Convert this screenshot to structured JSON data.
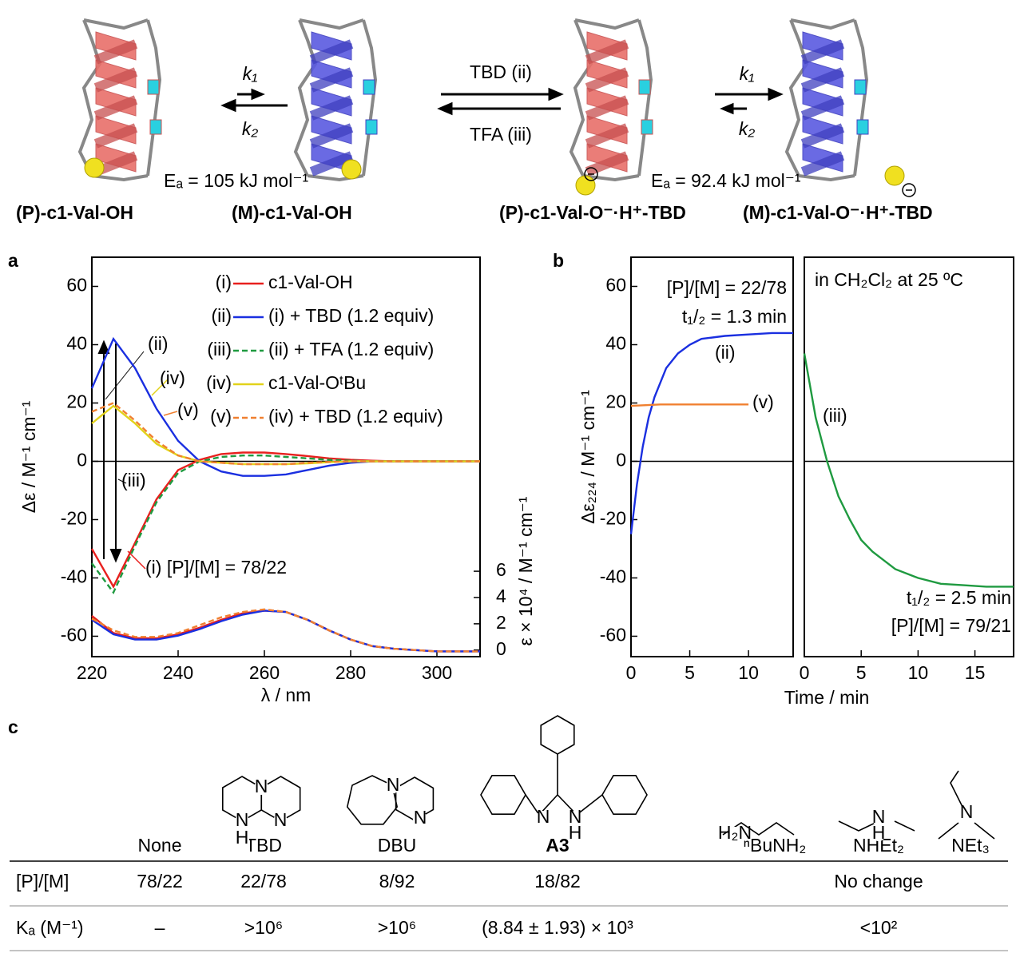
{
  "panels": [
    "a",
    "b",
    "c"
  ],
  "scheme": {
    "left_k1": "k₁",
    "left_k2": "k₂",
    "ea_left": "Eₐ = 105 kJ mol⁻¹",
    "reagent_top": "TBD (ii)",
    "reagent_bottom": "TFA (iii)",
    "right_k1": "k₁",
    "right_k2": "k₂",
    "ea_right": "Eₐ = 92.4 kJ mol⁻¹",
    "labels": [
      "(P)-c1-Val-OH",
      "(M)-c1-Val-OH",
      "(P)-c1-Val-O⁻·H⁺-TBD",
      "(M)-c1-Val-O⁻·H⁺-TBD"
    ]
  },
  "chart_data": [
    {
      "type": "line",
      "xlabel": "λ / nm",
      "ylabel": "Δε / M⁻¹ cm⁻¹",
      "y2label": "ε × 10⁴ / M⁻¹ cm⁻¹",
      "xlim": [
        220,
        310
      ],
      "xticks": [
        220,
        240,
        260,
        280,
        300
      ],
      "ylim": [
        -67,
        70
      ],
      "yticks": [
        -60,
        -40,
        -20,
        0,
        20,
        40,
        60
      ],
      "y2lim": [
        -0.5,
        29.9
      ],
      "y2ticks": [
        0,
        2,
        4,
        6
      ],
      "x": [
        220,
        225,
        230,
        235,
        240,
        245,
        250,
        255,
        260,
        265,
        270,
        275,
        280,
        285,
        290,
        295,
        300,
        305,
        310
      ],
      "series": [
        {
          "tag": "(i)",
          "name": "c1-Val-OH",
          "color": "#e8201e",
          "dashed": false,
          "values": [
            -30,
            -43,
            -28,
            -13,
            -3,
            0.5,
            2.5,
            3,
            3,
            2.5,
            1.8,
            1,
            0.5,
            0.2,
            0,
            0,
            0,
            0,
            0
          ]
        },
        {
          "tag": "(ii)",
          "name": "(i) + TBD (1.2 equiv)",
          "color": "#1a2fe0",
          "dashed": false,
          "values": [
            25,
            42,
            32,
            18,
            7,
            0,
            -3.5,
            -5,
            -5,
            -4.5,
            -3,
            -1.5,
            -0.5,
            0,
            0,
            0,
            0,
            0,
            0
          ]
        },
        {
          "tag": "(iii)",
          "name": "(ii) + TFA (1.2 equiv)",
          "color": "#1f9a40",
          "dashed": true,
          "values": [
            -35,
            -45,
            -29,
            -14,
            -4,
            0,
            1.5,
            2,
            2,
            1.5,
            1,
            0.5,
            0.2,
            0,
            0,
            0,
            0,
            0,
            0
          ]
        },
        {
          "tag": "(iv)",
          "name": "c1-Val-OᵗBu",
          "color": "#e2d21a",
          "dashed": false,
          "values": [
            13,
            19,
            13,
            6,
            2,
            0,
            -0.5,
            -1,
            -1,
            -1,
            -0.7,
            -0.3,
            0,
            0,
            0,
            0,
            0,
            0,
            0
          ]
        },
        {
          "tag": "(v)",
          "name": "(iv) + TBD (1.2 equiv)",
          "color": "#f08030",
          "dashed": true,
          "values": [
            17,
            20,
            14,
            7,
            2,
            0,
            -0.5,
            -1,
            -1,
            -1,
            -0.5,
            -0.2,
            0,
            0,
            0,
            0,
            0,
            0,
            0
          ]
        },
        {
          "axis": "y2",
          "color": "#e8201e",
          "dashed": false,
          "values": [
            2.6,
            1.3,
            0.9,
            0.9,
            1.2,
            1.7,
            2.3,
            2.8,
            3.0,
            2.9,
            2.3,
            1.5,
            0.8,
            0.3,
            0.1,
            0,
            -0.1,
            -0.1,
            -0.1
          ]
        },
        {
          "axis": "y2",
          "color": "#1a2fe0",
          "dashed": false,
          "values": [
            2.3,
            1.2,
            0.8,
            0.8,
            1.1,
            1.6,
            2.2,
            2.7,
            3.0,
            2.9,
            2.3,
            1.5,
            0.8,
            0.3,
            0.1,
            0,
            -0.1,
            -0.1,
            -0.1
          ]
        },
        {
          "axis": "y2",
          "color": "#f08030",
          "dashed": true,
          "values": [
            2.4,
            1.5,
            1.0,
            1.0,
            1.3,
            1.9,
            2.5,
            2.9,
            3.1,
            2.9,
            2.3,
            1.5,
            0.8,
            0.3,
            0.1,
            0,
            -0.1,
            -0.1,
            -0.1
          ]
        }
      ],
      "annotations": [
        "(ii)",
        "(iv)",
        "(v)",
        "(iii)",
        "(i) [P]/[M] = 78/22"
      ]
    },
    {
      "type": "line",
      "ylabel": "Δε₂₂₄ / M⁻¹ cm⁻¹",
      "xlim": [
        0,
        13.8
      ],
      "xticks": [
        0,
        5,
        10
      ],
      "ylim": [
        -67,
        70
      ],
      "yticks": [
        -60,
        -40,
        -20,
        0,
        20,
        40,
        60
      ],
      "series": [
        {
          "color": "#1a2fe0",
          "dashed": false,
          "x": [
            0,
            0.5,
            1,
            1.5,
            2,
            3,
            4,
            5,
            6,
            8,
            10,
            12,
            13.8
          ],
          "values": [
            -25,
            -8,
            5,
            15,
            22,
            32,
            37,
            40,
            42,
            43,
            43.5,
            44,
            44
          ]
        },
        {
          "color": "#f08030",
          "dashed": false,
          "x": [
            0,
            2.5,
            5,
            7.5,
            10
          ],
          "values": [
            19,
            19.5,
            19.5,
            19.5,
            19.5
          ]
        }
      ],
      "annotations": [
        "[P]/[M] = 22/78",
        "t₁/₂ = 1.3 min",
        "(ii)",
        "(v)"
      ]
    },
    {
      "type": "line",
      "xlabel": "Time / min",
      "xlim": [
        0,
        18.4
      ],
      "xticks": [
        0,
        5,
        10,
        15
      ],
      "ylim": [
        -67,
        70
      ],
      "series": [
        {
          "color": "#1f9a40",
          "dashed": false,
          "x": [
            0,
            1,
            2,
            3,
            4,
            5,
            6,
            7,
            8,
            10,
            12,
            14,
            16,
            18.4
          ],
          "values": [
            37,
            15,
            0,
            -12,
            -20,
            -27,
            -31,
            -34,
            -37,
            -40,
            -42,
            -42.5,
            -43,
            -43
          ]
        }
      ],
      "annotations": [
        "in CH₂Cl₂ at 25 ºC",
        "(iii)",
        "t₁/₂ = 2.5 min",
        "[P]/[M] = 79/21"
      ]
    }
  ],
  "table": {
    "header": [
      "None",
      "TBD",
      "DBU",
      "A3",
      "ⁿBuNH₂",
      "NHEt₂",
      "NEt₃"
    ],
    "rows": [
      [
        "[P]/[M]",
        "78/22",
        "22/78",
        "8/92",
        "18/82",
        "No change"
      ],
      [
        "Kₐ (M⁻¹)",
        "–",
        ">10⁶",
        ">10⁶",
        "(8.84 ± 1.93) × 10³",
        "<10²"
      ]
    ],
    "structures": [
      [
        "N",
        "N",
        "H",
        "N"
      ],
      [
        "N",
        "N"
      ],
      [
        "N",
        "N",
        "H"
      ],
      [
        "H₂N"
      ],
      [
        "N",
        "H"
      ],
      [
        "N"
      ]
    ]
  }
}
